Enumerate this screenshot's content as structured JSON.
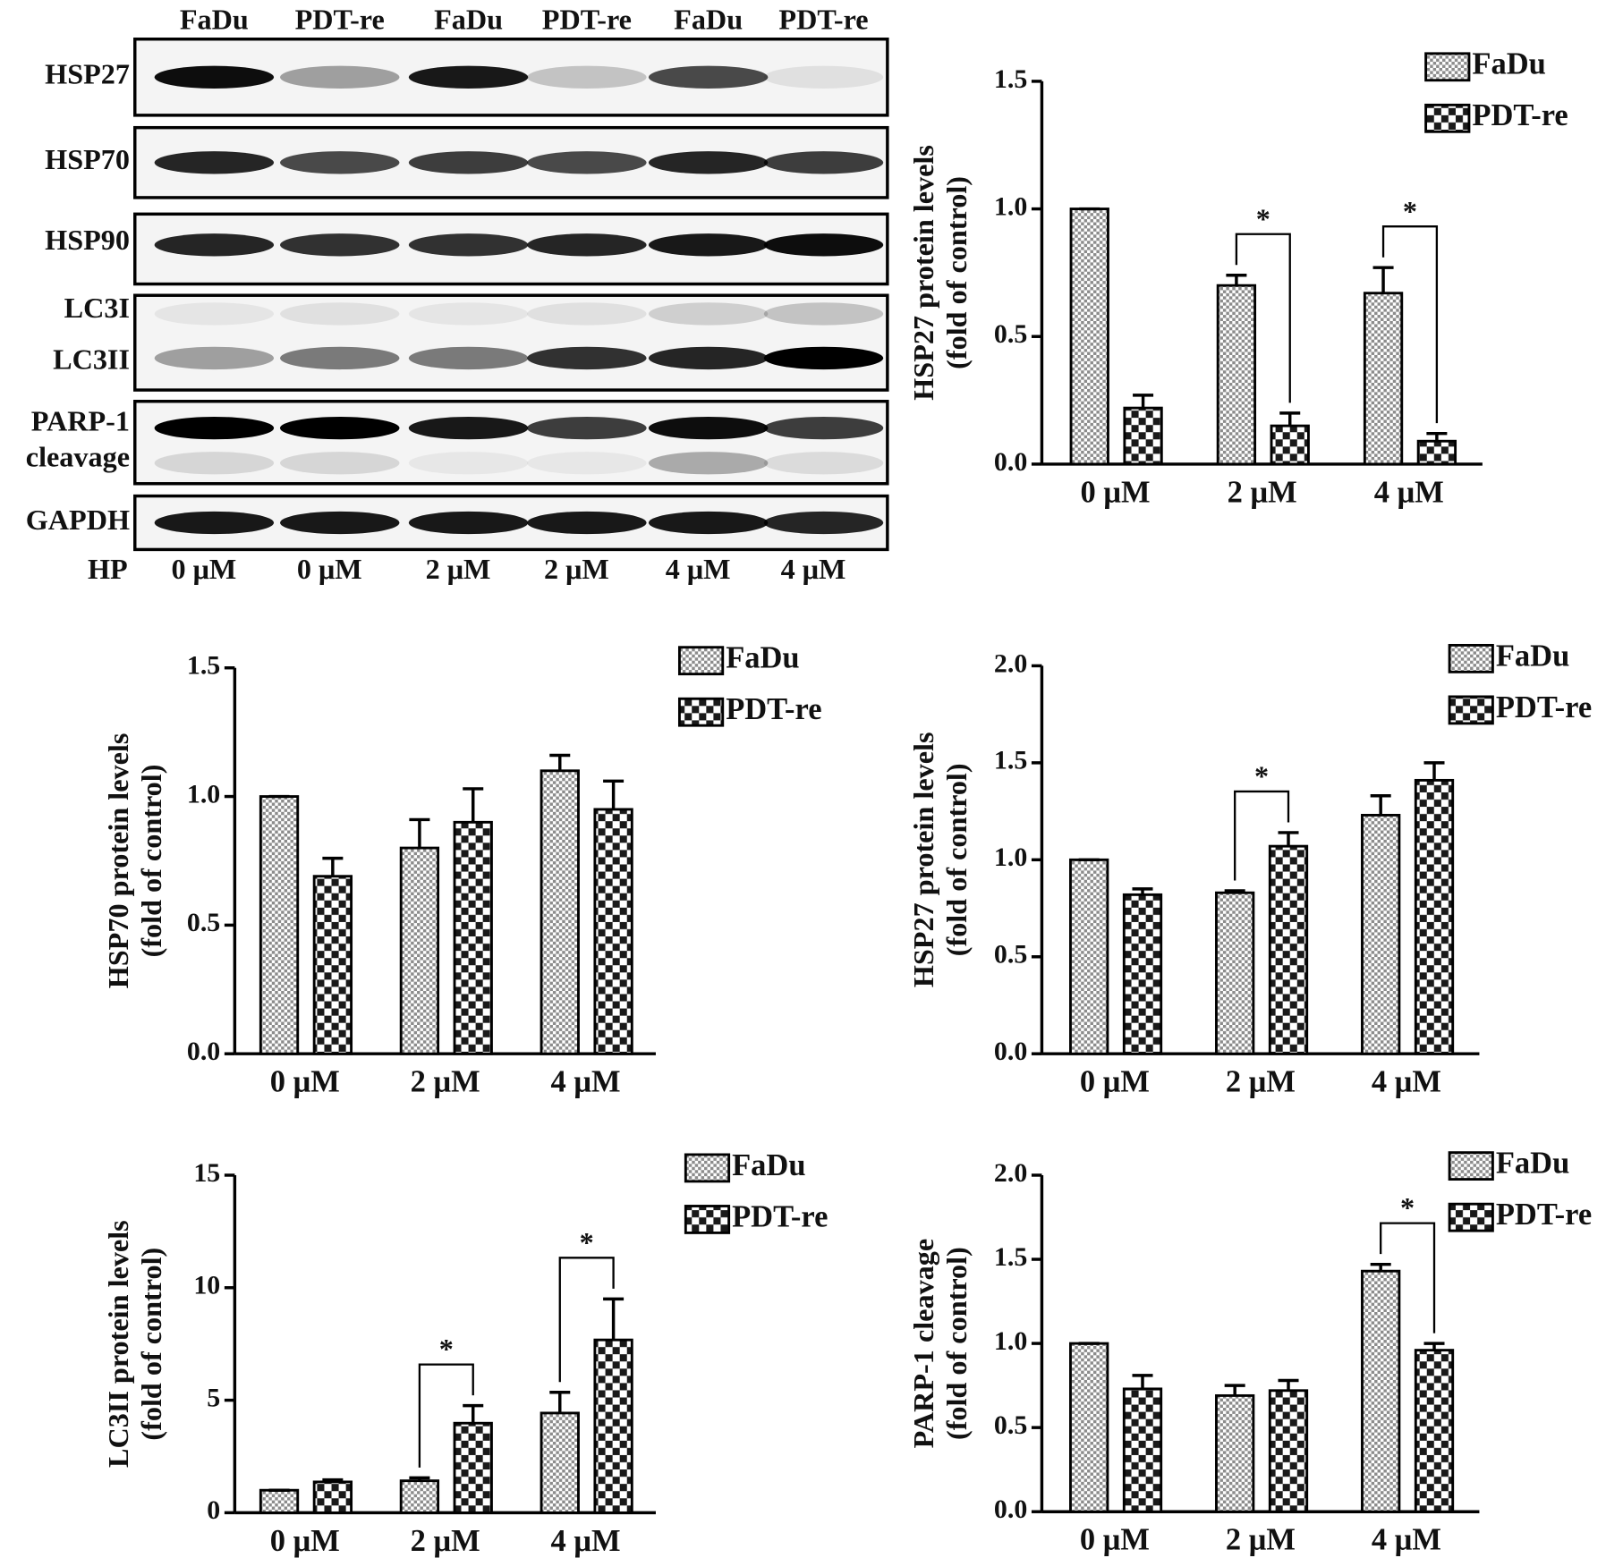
{
  "blot": {
    "columns": [
      "FaDu",
      "PDT-re",
      "FaDu",
      "PDT-re",
      "FaDu",
      "PDT-re"
    ],
    "rows": [
      "HSP27",
      "HSP70",
      "HSP90",
      "LC3I",
      "LC3II",
      "PARP-1",
      "cleavage",
      "GAPDH"
    ],
    "treatment_label": "HP",
    "doses": [
      "0 μM",
      "0 μM",
      "2 μM",
      "2 μM",
      "4 μM",
      "4 μM"
    ]
  },
  "chart_data": [
    {
      "type": "bar",
      "ylabel": [
        "HSP27 protein levels",
        "(fold of control)"
      ],
      "categories": [
        "0 μM",
        "2 μM",
        "4 μM"
      ],
      "series": [
        {
          "name": "FaDu",
          "color": "#8c8c8c",
          "hatch": "fine-check",
          "values": [
            1.0,
            0.7,
            0.67
          ],
          "errors": [
            0,
            0.04,
            0.1
          ]
        },
        {
          "name": "PDT-re",
          "color": "#1a1a1a",
          "hatch": "coarse-check",
          "values": [
            0.22,
            0.15,
            0.09
          ],
          "errors": [
            0.05,
            0.05,
            0.03
          ]
        }
      ],
      "significance": [
        null,
        "*",
        "*"
      ],
      "ylim": [
        0,
        1.5
      ],
      "yticks": [
        {
          "value": 0,
          "label": "0.0"
        },
        0.5,
        {
          "value": 1,
          "label": "1.0"
        },
        1.5
      ]
    },
    {
      "type": "bar",
      "ylabel": [
        "HSP70 protein levels",
        "(fold of control)"
      ],
      "categories": [
        "0 μM",
        "2 μM",
        "4 μM"
      ],
      "series": [
        {
          "name": "FaDu",
          "color": "#8c8c8c",
          "hatch": "fine-check",
          "values": [
            1.0,
            0.8,
            1.1
          ],
          "errors": [
            0,
            0.11,
            0.06
          ]
        },
        {
          "name": "PDT-re",
          "color": "#1a1a1a",
          "hatch": "coarse-check",
          "values": [
            0.69,
            0.9,
            0.95
          ],
          "errors": [
            0.07,
            0.13,
            0.11
          ]
        }
      ],
      "significance": [
        null,
        null,
        null
      ],
      "ylim": [
        0,
        1.5
      ],
      "yticks": [
        {
          "value": 0,
          "label": "0.0"
        },
        0.5,
        {
          "value": 1,
          "label": "1.0"
        },
        1.5
      ]
    },
    {
      "type": "bar",
      "ylabel": [
        "HSP27 protein levels",
        "(fold of control)"
      ],
      "categories": [
        "0 μM",
        "2 μM",
        "4 μM"
      ],
      "series": [
        {
          "name": "FaDu",
          "color": "#8c8c8c",
          "hatch": "fine-check",
          "values": [
            1.0,
            0.83,
            1.23
          ],
          "errors": [
            0,
            0.01,
            0.1
          ]
        },
        {
          "name": "PDT-re",
          "color": "#1a1a1a",
          "hatch": "coarse-check",
          "values": [
            0.82,
            1.07,
            1.41
          ],
          "errors": [
            0.03,
            0.07,
            0.09
          ]
        }
      ],
      "significance": [
        null,
        "*",
        null
      ],
      "ylim": [
        0,
        2
      ],
      "yticks": [
        {
          "value": 0,
          "label": "0.0"
        },
        0.5,
        {
          "value": 1,
          "label": "1.0"
        },
        1.5,
        {
          "value": 2,
          "label": "2.0"
        }
      ]
    },
    {
      "type": "bar",
      "ylabel": [
        "LC3II protein levels",
        "(fold of control)"
      ],
      "categories": [
        "0 μM",
        "2 μM",
        "4 μM"
      ],
      "series": [
        {
          "name": "FaDu",
          "color": "#8c8c8c",
          "hatch": "fine-check",
          "values": [
            1.0,
            1.42,
            4.43
          ],
          "errors": [
            0,
            0.13,
            0.92
          ]
        },
        {
          "name": "PDT-re",
          "color": "#1a1a1a",
          "hatch": "coarse-check",
          "values": [
            1.37,
            3.98,
            7.68
          ],
          "errors": [
            0.09,
            0.78,
            1.82
          ]
        }
      ],
      "significance": [
        null,
        "*",
        "*"
      ],
      "ylim": [
        0,
        15
      ],
      "yticks": [
        0,
        5,
        10,
        15
      ]
    },
    {
      "type": "bar",
      "ylabel": [
        "PARP-1 cleavage",
        "(fold of control)"
      ],
      "categories": [
        "0 μM",
        "2 μM",
        "4 μM"
      ],
      "series": [
        {
          "name": "FaDu",
          "color": "#8c8c8c",
          "hatch": "fine-check",
          "values": [
            1.0,
            0.69,
            1.43
          ],
          "errors": [
            0,
            0.06,
            0.04
          ]
        },
        {
          "name": "PDT-re",
          "color": "#1a1a1a",
          "hatch": "coarse-check",
          "values": [
            0.73,
            0.72,
            0.96
          ],
          "errors": [
            0.08,
            0.06,
            0.04
          ]
        }
      ],
      "significance": [
        null,
        null,
        "*"
      ],
      "ylim": [
        0,
        2
      ],
      "yticks": [
        {
          "value": 0,
          "label": "0.0"
        },
        0.5,
        {
          "value": 1,
          "label": "1.0"
        },
        1.5,
        {
          "value": 2,
          "label": "2.0"
        }
      ]
    }
  ]
}
